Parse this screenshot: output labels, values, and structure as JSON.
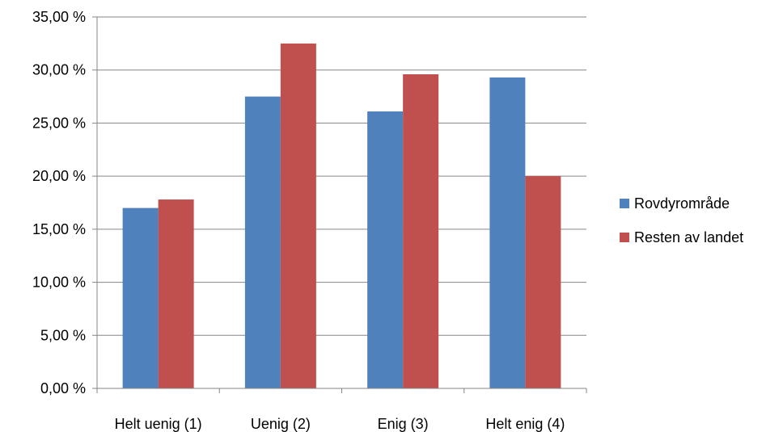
{
  "chart_data": {
    "type": "bar",
    "categories": [
      "Helt uenig (1)",
      "Uenig (2)",
      "Enig (3)",
      "Helt enig (4)"
    ],
    "series": [
      {
        "name": "Rovdyrområde",
        "color": "#4F81BD",
        "values": [
          17.0,
          27.5,
          26.1,
          29.3
        ]
      },
      {
        "name": "Resten av landet",
        "color": "#C0504D",
        "values": [
          17.8,
          32.5,
          29.6,
          20.0
        ]
      }
    ],
    "ylim": [
      0,
      35
    ],
    "yticks": [
      0,
      5,
      10,
      15,
      20,
      25,
      30,
      35
    ],
    "ytick_labels": [
      "0,00 %",
      "5,00 %",
      "10,00 %",
      "15,00 %",
      "20,00 %",
      "25,00 %",
      "30,00 %",
      "35,00 %"
    ],
    "grid": true,
    "legend_position": "right",
    "title": "",
    "xlabel": "",
    "ylabel": ""
  }
}
